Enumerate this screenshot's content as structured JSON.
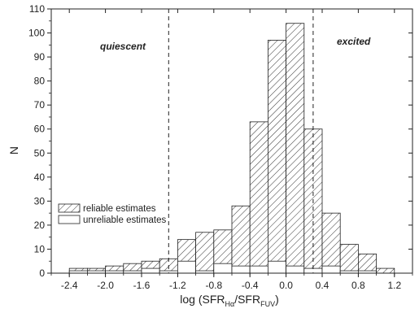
{
  "chart_data": {
    "type": "bar",
    "subtype": "stacked-histogram",
    "xlabel_prefix": "log (SFR",
    "xlabel_sub1": "Hα",
    "xlabel_sep": "/SFR",
    "xlabel_sub2": "FUV",
    "xlabel_suffix": ")",
    "ylabel": "N",
    "xlim": [
      -2.6,
      1.4
    ],
    "ylim": [
      0,
      110
    ],
    "xticks": [
      -2.4,
      -2.0,
      -1.6,
      -1.2,
      -0.8,
      -0.4,
      0.0,
      0.4,
      0.8,
      1.2
    ],
    "xtick_labels": [
      "-2.4",
      "-2.0",
      "-1.6",
      "-1.2",
      "-0.8",
      "-0.4",
      "0.0",
      "0.4",
      "0.8",
      "1.2"
    ],
    "yticks": [
      0,
      10,
      20,
      30,
      40,
      50,
      60,
      70,
      80,
      90,
      100,
      110
    ],
    "ytick_labels": [
      "0",
      "10",
      "20",
      "30",
      "40",
      "50",
      "60",
      "70",
      "80",
      "90",
      "100",
      "110"
    ],
    "bin_width": 0.2,
    "bins_left": [
      -2.4,
      -2.2,
      -2.0,
      -1.8,
      -1.6,
      -1.4,
      -1.2,
      -1.0,
      -0.8,
      -0.6,
      -0.4,
      -0.2,
      0.0,
      0.2,
      0.4,
      0.6,
      0.8,
      1.0
    ],
    "series": [
      {
        "name": "reliable estimates",
        "pattern": "hatched",
        "values": [
          2,
          2,
          3,
          4,
          5,
          6,
          14,
          17,
          18,
          28,
          63,
          97,
          104,
          60,
          25,
          12,
          8,
          2
        ]
      },
      {
        "name": "unreliable estimates",
        "pattern": "open",
        "values": [
          1,
          1,
          1,
          1,
          2,
          1,
          5,
          1,
          4,
          3,
          3,
          5,
          3,
          2,
          3,
          1,
          1,
          0
        ]
      }
    ],
    "vlines": [
      -1.3,
      0.3
    ],
    "annotations": [
      "quiescent",
      "excited"
    ],
    "legend_position": "lower-left",
    "grid": false
  }
}
